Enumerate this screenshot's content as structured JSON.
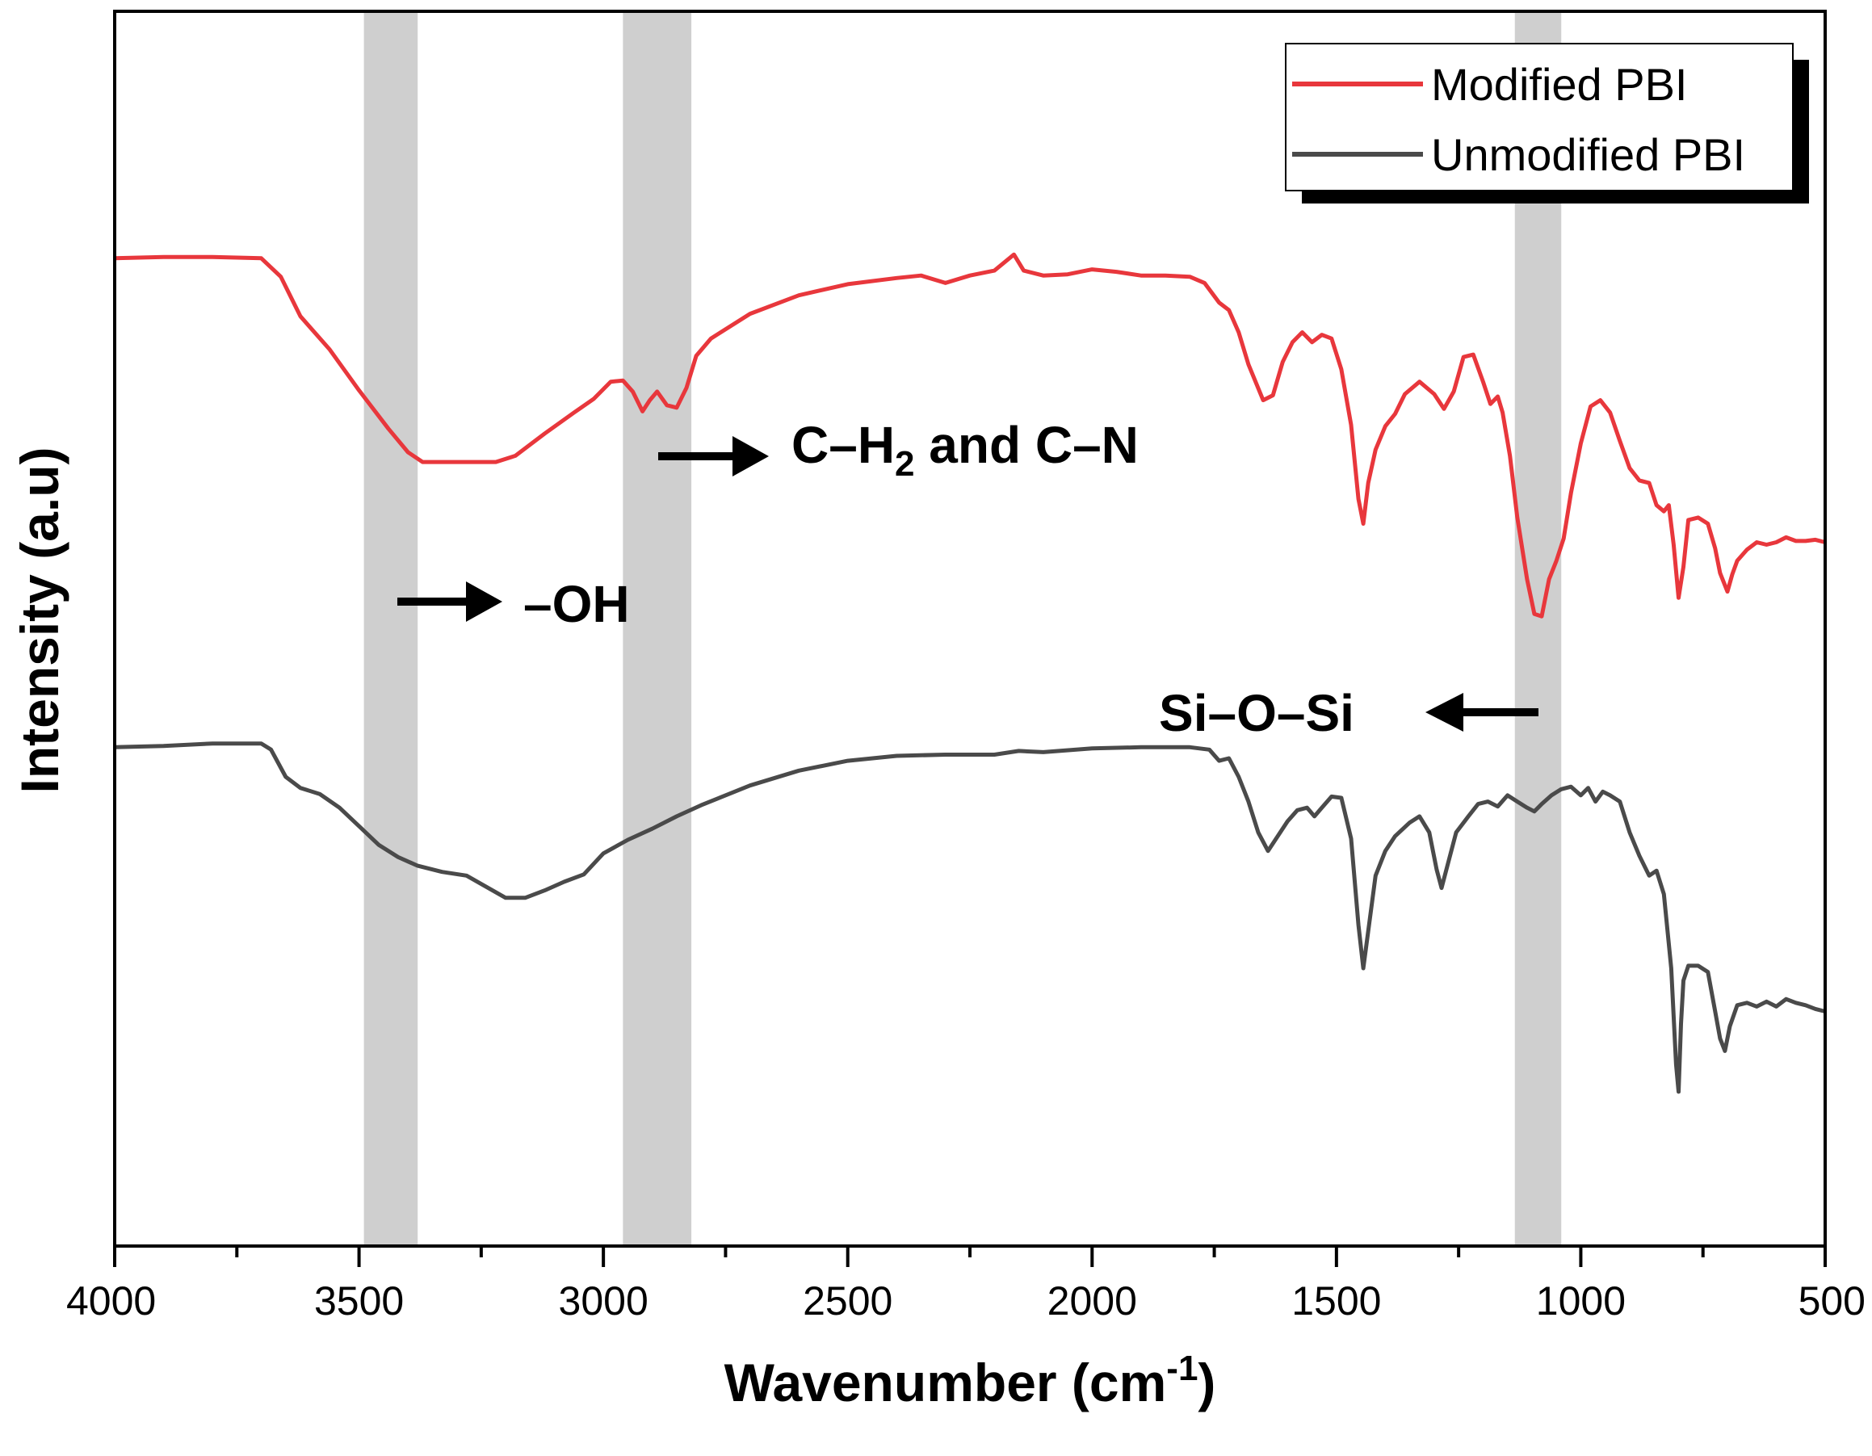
{
  "chart_data": {
    "type": "line",
    "xlabel": "Wavenumber (cm",
    "xlabel_sup": "-1",
    "xlabel_tail": ")",
    "ylabel": "Intensity (a.u)",
    "xlim": [
      4000,
      500
    ],
    "x_reversed": true,
    "ylim": [
      0,
      100
    ],
    "grid": false,
    "y_tick_labels": false,
    "x_ticks": [
      4000,
      3500,
      3000,
      2500,
      2000,
      1500,
      1000,
      500
    ],
    "x_tick_labels": [
      "4000",
      "3500",
      "3000",
      "2500",
      "2000",
      "1500",
      "1000",
      "500"
    ],
    "legend": {
      "placement": "top-right",
      "entries": [
        {
          "name": "Modified PBI",
          "color": "#e8373c"
        },
        {
          "name": "Unmodified PBI",
          "color": "#4a4a4a"
        }
      ]
    },
    "bands": [
      {
        "from": 3490,
        "to": 3380
      },
      {
        "from": 2960,
        "to": 2820
      },
      {
        "from": 1135,
        "to": 1040
      }
    ],
    "band_color": "#cfcfcf",
    "annotations": [
      {
        "id": "oh",
        "text": "–OH",
        "arrow": "right"
      },
      {
        "id": "ch2",
        "text": "C–H",
        "sub": "2",
        "tail": " and C–N",
        "arrow": "right"
      },
      {
        "id": "siosi",
        "text": "Si–O–Si",
        "arrow": "left"
      }
    ],
    "series": [
      {
        "name": "Modified PBI",
        "color": "#e8373c",
        "points": [
          [
            4000,
            80.0
          ],
          [
            3900,
            80.1
          ],
          [
            3800,
            80.1
          ],
          [
            3700,
            80.0
          ],
          [
            3660,
            78.5
          ],
          [
            3620,
            75.3
          ],
          [
            3560,
            72.6
          ],
          [
            3500,
            69.3
          ],
          [
            3440,
            66.2
          ],
          [
            3400,
            64.3
          ],
          [
            3370,
            63.5
          ],
          [
            3300,
            63.5
          ],
          [
            3220,
            63.5
          ],
          [
            3180,
            64.0
          ],
          [
            3120,
            65.8
          ],
          [
            3060,
            67.5
          ],
          [
            3020,
            68.6
          ],
          [
            2985,
            70.0
          ],
          [
            2960,
            70.1
          ],
          [
            2940,
            69.2
          ],
          [
            2920,
            67.6
          ],
          [
            2905,
            68.5
          ],
          [
            2890,
            69.2
          ],
          [
            2870,
            68.1
          ],
          [
            2850,
            67.9
          ],
          [
            2830,
            69.5
          ],
          [
            2810,
            72.1
          ],
          [
            2780,
            73.5
          ],
          [
            2700,
            75.5
          ],
          [
            2600,
            77.0
          ],
          [
            2500,
            77.9
          ],
          [
            2400,
            78.4
          ],
          [
            2350,
            78.6
          ],
          [
            2300,
            78.0
          ],
          [
            2250,
            78.6
          ],
          [
            2200,
            79.0
          ],
          [
            2160,
            80.3
          ],
          [
            2140,
            79.0
          ],
          [
            2100,
            78.6
          ],
          [
            2050,
            78.7
          ],
          [
            2000,
            79.1
          ],
          [
            1950,
            78.9
          ],
          [
            1900,
            78.6
          ],
          [
            1850,
            78.6
          ],
          [
            1800,
            78.5
          ],
          [
            1770,
            78.0
          ],
          [
            1740,
            76.4
          ],
          [
            1720,
            75.8
          ],
          [
            1700,
            74.0
          ],
          [
            1680,
            71.4
          ],
          [
            1650,
            68.5
          ],
          [
            1630,
            68.9
          ],
          [
            1610,
            71.6
          ],
          [
            1590,
            73.2
          ],
          [
            1570,
            74.0
          ],
          [
            1550,
            73.2
          ],
          [
            1530,
            73.8
          ],
          [
            1510,
            73.5
          ],
          [
            1490,
            71.0
          ],
          [
            1470,
            66.5
          ],
          [
            1455,
            60.5
          ],
          [
            1445,
            58.5
          ],
          [
            1435,
            61.8
          ],
          [
            1420,
            64.5
          ],
          [
            1400,
            66.4
          ],
          [
            1380,
            67.4
          ],
          [
            1360,
            69.0
          ],
          [
            1330,
            70.0
          ],
          [
            1300,
            69.0
          ],
          [
            1280,
            67.8
          ],
          [
            1260,
            69.2
          ],
          [
            1240,
            72.0
          ],
          [
            1220,
            72.2
          ],
          [
            1200,
            70.0
          ],
          [
            1185,
            68.2
          ],
          [
            1170,
            68.8
          ],
          [
            1160,
            67.5
          ],
          [
            1145,
            64.0
          ],
          [
            1130,
            59.0
          ],
          [
            1110,
            54.0
          ],
          [
            1095,
            51.2
          ],
          [
            1080,
            51.0
          ],
          [
            1065,
            54.0
          ],
          [
            1050,
            55.5
          ],
          [
            1035,
            57.3
          ],
          [
            1020,
            61.0
          ],
          [
            1000,
            65.0
          ],
          [
            980,
            68.0
          ],
          [
            960,
            68.5
          ],
          [
            940,
            67.5
          ],
          [
            920,
            65.2
          ],
          [
            900,
            63.0
          ],
          [
            880,
            62.0
          ],
          [
            860,
            61.8
          ],
          [
            845,
            60.0
          ],
          [
            830,
            59.5
          ],
          [
            820,
            60.0
          ],
          [
            810,
            56.8
          ],
          [
            800,
            52.5
          ],
          [
            790,
            55.0
          ],
          [
            780,
            58.8
          ],
          [
            760,
            59.0
          ],
          [
            740,
            58.5
          ],
          [
            725,
            56.5
          ],
          [
            715,
            54.5
          ],
          [
            700,
            53.0
          ],
          [
            690,
            54.4
          ],
          [
            680,
            55.5
          ],
          [
            660,
            56.4
          ],
          [
            640,
            57.0
          ],
          [
            620,
            56.8
          ],
          [
            600,
            57.0
          ],
          [
            580,
            57.4
          ],
          [
            560,
            57.1
          ],
          [
            540,
            57.1
          ],
          [
            520,
            57.2
          ],
          [
            500,
            57.0
          ]
        ]
      },
      {
        "name": "Unmodified PBI",
        "color": "#4a4a4a",
        "points": [
          [
            4000,
            40.4
          ],
          [
            3900,
            40.5
          ],
          [
            3800,
            40.7
          ],
          [
            3700,
            40.7
          ],
          [
            3680,
            40.2
          ],
          [
            3650,
            38.0
          ],
          [
            3620,
            37.1
          ],
          [
            3580,
            36.6
          ],
          [
            3540,
            35.5
          ],
          [
            3500,
            34.0
          ],
          [
            3460,
            32.5
          ],
          [
            3420,
            31.5
          ],
          [
            3380,
            30.8
          ],
          [
            3330,
            30.3
          ],
          [
            3280,
            30.0
          ],
          [
            3240,
            29.1
          ],
          [
            3200,
            28.2
          ],
          [
            3160,
            28.2
          ],
          [
            3120,
            28.8
          ],
          [
            3080,
            29.5
          ],
          [
            3040,
            30.1
          ],
          [
            3000,
            31.8
          ],
          [
            2950,
            32.9
          ],
          [
            2900,
            33.8
          ],
          [
            2850,
            34.8
          ],
          [
            2800,
            35.7
          ],
          [
            2700,
            37.3
          ],
          [
            2600,
            38.5
          ],
          [
            2500,
            39.3
          ],
          [
            2400,
            39.7
          ],
          [
            2300,
            39.8
          ],
          [
            2200,
            39.8
          ],
          [
            2150,
            40.1
          ],
          [
            2100,
            40.0
          ],
          [
            2000,
            40.3
          ],
          [
            1900,
            40.4
          ],
          [
            1800,
            40.4
          ],
          [
            1760,
            40.2
          ],
          [
            1740,
            39.3
          ],
          [
            1720,
            39.5
          ],
          [
            1700,
            38.0
          ],
          [
            1680,
            36.0
          ],
          [
            1660,
            33.5
          ],
          [
            1640,
            32.0
          ],
          [
            1620,
            33.2
          ],
          [
            1600,
            34.4
          ],
          [
            1580,
            35.3
          ],
          [
            1560,
            35.5
          ],
          [
            1545,
            34.8
          ],
          [
            1530,
            35.5
          ],
          [
            1510,
            36.4
          ],
          [
            1490,
            36.3
          ],
          [
            1470,
            33.0
          ],
          [
            1455,
            26.0
          ],
          [
            1445,
            22.5
          ],
          [
            1435,
            25.5
          ],
          [
            1420,
            30.0
          ],
          [
            1400,
            32.0
          ],
          [
            1380,
            33.2
          ],
          [
            1350,
            34.3
          ],
          [
            1330,
            34.8
          ],
          [
            1310,
            33.5
          ],
          [
            1295,
            30.5
          ],
          [
            1285,
            29.0
          ],
          [
            1275,
            30.5
          ],
          [
            1255,
            33.5
          ],
          [
            1230,
            34.8
          ],
          [
            1210,
            35.8
          ],
          [
            1190,
            36.0
          ],
          [
            1170,
            35.6
          ],
          [
            1150,
            36.5
          ],
          [
            1130,
            36.0
          ],
          [
            1110,
            35.5
          ],
          [
            1095,
            35.2
          ],
          [
            1080,
            35.8
          ],
          [
            1060,
            36.5
          ],
          [
            1040,
            37.0
          ],
          [
            1020,
            37.2
          ],
          [
            1000,
            36.5
          ],
          [
            985,
            37.1
          ],
          [
            970,
            36.0
          ],
          [
            955,
            36.8
          ],
          [
            940,
            36.5
          ],
          [
            920,
            36.0
          ],
          [
            900,
            33.5
          ],
          [
            880,
            31.6
          ],
          [
            860,
            30.0
          ],
          [
            845,
            30.4
          ],
          [
            830,
            28.5
          ],
          [
            815,
            22.5
          ],
          [
            805,
            14.7
          ],
          [
            800,
            12.5
          ],
          [
            795,
            18.0
          ],
          [
            790,
            21.5
          ],
          [
            780,
            22.7
          ],
          [
            760,
            22.7
          ],
          [
            740,
            22.2
          ],
          [
            725,
            19.0
          ],
          [
            715,
            16.8
          ],
          [
            705,
            15.8
          ],
          [
            695,
            17.8
          ],
          [
            680,
            19.5
          ],
          [
            660,
            19.7
          ],
          [
            640,
            19.4
          ],
          [
            620,
            19.8
          ],
          [
            600,
            19.4
          ],
          [
            580,
            20.0
          ],
          [
            560,
            19.7
          ],
          [
            540,
            19.5
          ],
          [
            520,
            19.2
          ],
          [
            500,
            19.0
          ]
        ]
      }
    ]
  }
}
